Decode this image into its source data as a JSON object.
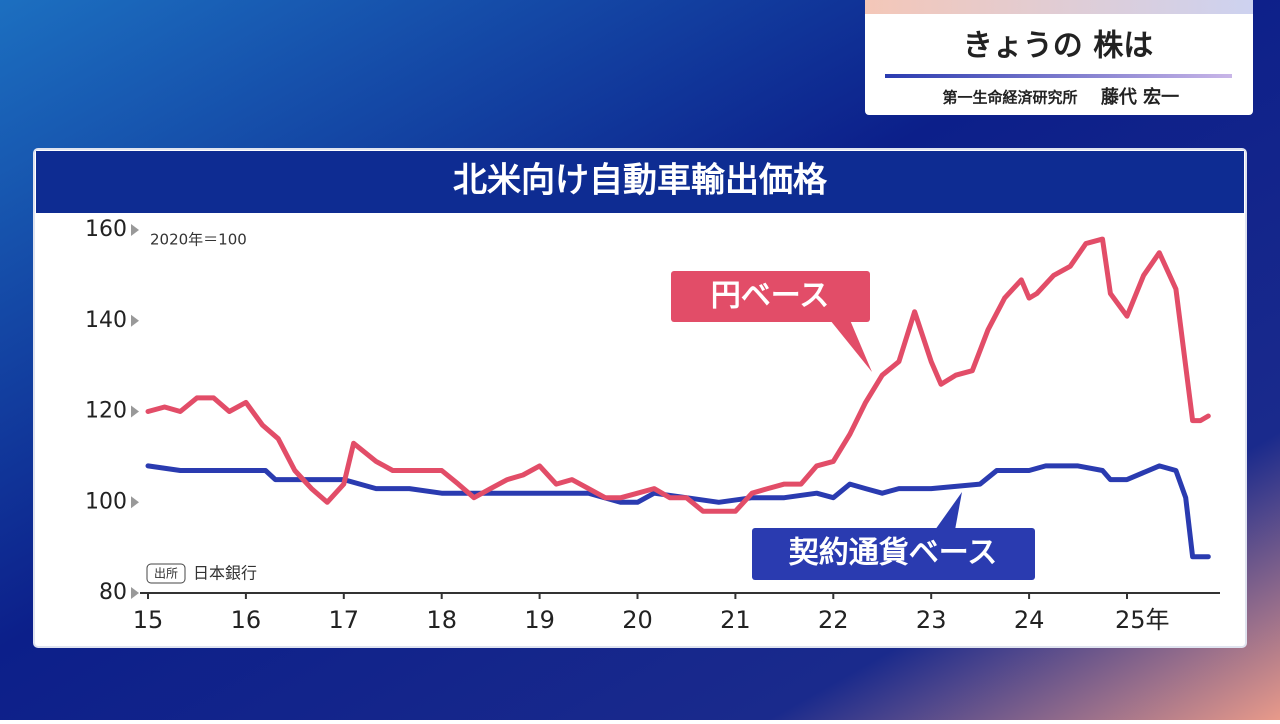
{
  "header": {
    "title": "きょうの 株は",
    "affiliation": "第一生命経済研究所",
    "person": "藤代 宏一"
  },
  "chart_data": {
    "type": "line",
    "title": "北米向け自動車輸出価格",
    "unit_note": "2020年＝100",
    "source_label": "出所",
    "source": "日本銀行",
    "xlim": [
      15,
      25.95
    ],
    "xticks": [
      15,
      16,
      17,
      18,
      19,
      20,
      21,
      22,
      23,
      24,
      {
        "value": 25,
        "label": "25年"
      }
    ],
    "ylim": [
      80,
      160
    ],
    "yticks": [
      80,
      100,
      120,
      140,
      160
    ],
    "series": [
      {
        "name": "契約通貨ベース",
        "color": "#2a3bb0",
        "x": [
          15.0,
          15.33,
          15.5,
          16.0,
          16.2,
          16.3,
          16.5,
          16.83,
          17.0,
          17.33,
          17.67,
          18.0,
          18.5,
          19.0,
          19.5,
          19.83,
          20.0,
          20.17,
          20.5,
          20.83,
          21.17,
          21.5,
          21.83,
          22.0,
          22.17,
          22.33,
          22.5,
          22.67,
          23.0,
          23.5,
          23.67,
          24.0,
          24.17,
          24.5,
          24.75,
          24.83,
          25.0,
          25.33,
          25.5,
          25.6,
          25.67,
          25.83
        ],
        "values": [
          108,
          107,
          107,
          107,
          107,
          105,
          105,
          105,
          105,
          103,
          103,
          102,
          102,
          102,
          102,
          100,
          100,
          102,
          101,
          100,
          101,
          101,
          102,
          101,
          104,
          103,
          102,
          103,
          103,
          104,
          107,
          107,
          108,
          108,
          107,
          105,
          105,
          108,
          107,
          101,
          88,
          88
        ]
      },
      {
        "name": "円ベース",
        "color": "#e24d68",
        "x": [
          15.0,
          15.17,
          15.33,
          15.5,
          15.67,
          15.83,
          16.0,
          16.17,
          16.33,
          16.5,
          16.67,
          16.83,
          17.0,
          17.1,
          17.33,
          17.5,
          17.67,
          17.83,
          18.0,
          18.17,
          18.33,
          18.5,
          18.67,
          18.83,
          19.0,
          19.17,
          19.33,
          19.5,
          19.67,
          19.83,
          20.0,
          20.17,
          20.33,
          20.5,
          20.67,
          20.83,
          21.0,
          21.17,
          21.33,
          21.5,
          21.67,
          21.83,
          22.0,
          22.17,
          22.33,
          22.5,
          22.67,
          22.83,
          23.0,
          23.1,
          23.25,
          23.42,
          23.58,
          23.75,
          23.92,
          24.0,
          24.08,
          24.25,
          24.42,
          24.58,
          24.75,
          24.83,
          25.0,
          25.17,
          25.33,
          25.5,
          25.67,
          25.75,
          25.83
        ],
        "values": [
          120,
          121,
          120,
          123,
          123,
          120,
          122,
          117,
          114,
          107,
          103,
          100,
          104,
          113,
          109,
          107,
          107,
          107,
          107,
          104,
          101,
          103,
          105,
          106,
          108,
          104,
          105,
          103,
          101,
          101,
          102,
          103,
          101,
          101,
          98,
          98,
          98,
          102,
          103,
          104,
          104,
          108,
          109,
          115,
          122,
          128,
          131,
          142,
          131,
          126,
          128,
          129,
          138,
          145,
          149,
          145,
          146,
          150,
          152,
          157,
          158,
          146,
          141,
          150,
          155,
          147,
          118,
          118,
          119
        ]
      }
    ]
  }
}
